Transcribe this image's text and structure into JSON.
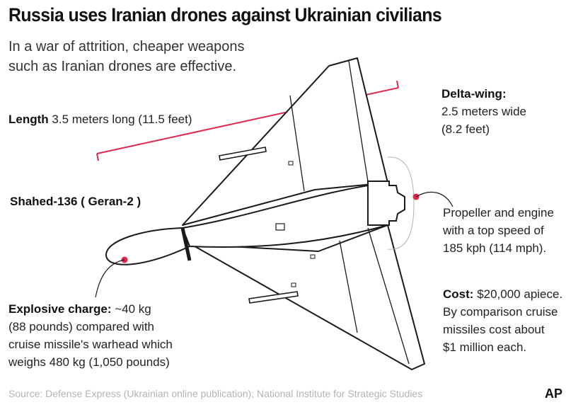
{
  "title": "Russia uses Iranian drones against Ukrainian civilians",
  "subtitle": "In a war of attrition, cheaper weapons such as Iranian drones are effective.",
  "length": {
    "label": "Length",
    "text": "3.5 meters long (11.5 feet)"
  },
  "model": "Shahed-136 ( Geran-2 )",
  "wing": {
    "label": "Delta-wing:",
    "line1": "2.5 meters wide",
    "line2": "(8.2 feet)"
  },
  "propeller": {
    "line1": "Propeller and engine",
    "line2": "with a top speed of",
    "line3": "185 kph (114 mph)."
  },
  "cost": {
    "label": "Cost:",
    "text": "$20,000 apiece.",
    "line2": "By comparison cruise",
    "line3": "missiles cost about",
    "line4": "$1 million each."
  },
  "explosive": {
    "label": "Explosive charge:",
    "text": "~40 kg",
    "line2": "(88 pounds) compared with",
    "line3": "cruise missile's warhead which",
    "line4": "weighs 480 kg (1,050 pounds)"
  },
  "source": "Source: Defense Express (Ukrainian online publication); National Institute for Strategic Studies",
  "credit": "AP",
  "colors": {
    "accent": "#e0284f",
    "outline": "#1a1a1a",
    "muted": "#b3b3b3"
  }
}
